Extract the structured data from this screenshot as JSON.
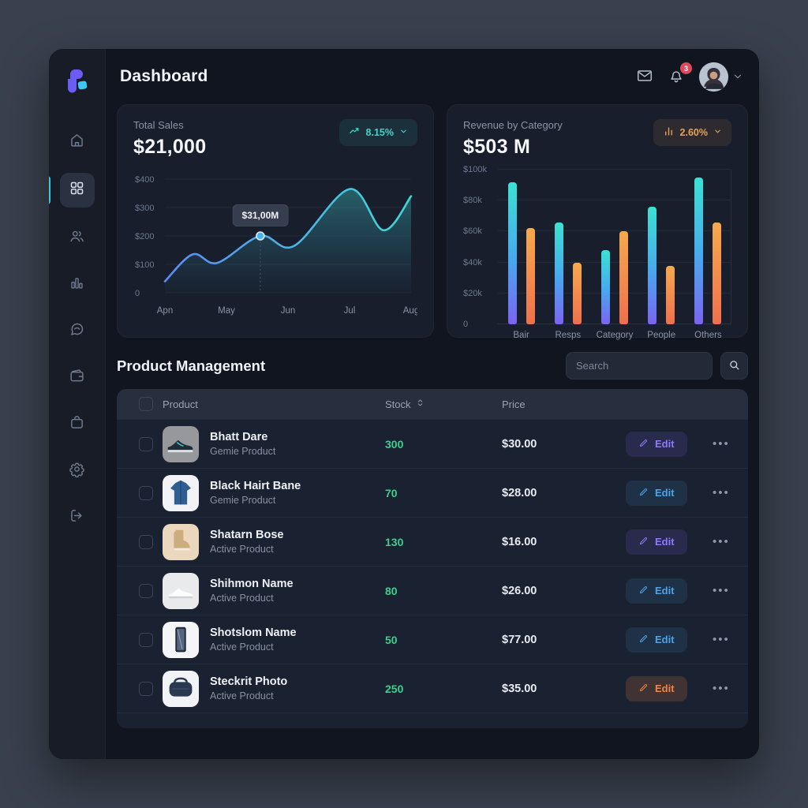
{
  "header": {
    "title": "Dashboard",
    "notification_count": "3"
  },
  "sidebar": {
    "items": [
      {
        "id": "home",
        "icon": "home",
        "active": false
      },
      {
        "id": "dashboard",
        "icon": "grid",
        "active": true
      },
      {
        "id": "users",
        "icon": "users",
        "active": false
      },
      {
        "id": "analytics",
        "icon": "bar-chart",
        "active": false
      },
      {
        "id": "messages",
        "icon": "chat",
        "active": false
      },
      {
        "id": "wallet",
        "icon": "wallet",
        "active": false
      },
      {
        "id": "orders",
        "icon": "bag",
        "active": false
      },
      {
        "id": "settings",
        "icon": "gear",
        "active": false
      },
      {
        "id": "logout",
        "icon": "logout",
        "active": false
      }
    ]
  },
  "cards": {
    "total_sales": {
      "label": "Total Sales",
      "value": "$21,000",
      "badge_text": "8.15%"
    },
    "revenue": {
      "label": "Revenue by Category",
      "value": "$503 M",
      "badge_text": "2.60%"
    }
  },
  "chart_data": [
    {
      "type": "area",
      "title": "Total Sales trend",
      "x_ticks": [
        "Apn",
        "May",
        "Jun",
        "Jul",
        "Aug"
      ],
      "y_ticks": [
        "$400",
        "$300",
        "$200",
        "$100",
        "0"
      ],
      "ylim": [
        0,
        400
      ],
      "points": [
        {
          "x": 0.0,
          "y": 40
        },
        {
          "x": 0.45,
          "y": 135
        },
        {
          "x": 0.85,
          "y": 105
        },
        {
          "x": 1.55,
          "y": 200
        },
        {
          "x": 2.1,
          "y": 165
        },
        {
          "x": 3.0,
          "y": 365
        },
        {
          "x": 3.55,
          "y": 220
        },
        {
          "x": 4.0,
          "y": 340
        }
      ],
      "marker": {
        "x": 1.55,
        "y": 200,
        "label": "$31,00M"
      },
      "line_gradient": [
        "#5b8bf5",
        "#3fd8d4"
      ],
      "grid": true,
      "legend": "none"
    },
    {
      "type": "bar",
      "title": "Revenue by Category",
      "categories": [
        "Bair",
        "Resps",
        "Category",
        "People",
        "Others"
      ],
      "series": [
        {
          "name": "primary",
          "values": [
            92,
            66,
            48,
            76,
            95
          ]
        },
        {
          "name": "secondary",
          "values": [
            62,
            40,
            60,
            38,
            66
          ]
        }
      ],
      "y_ticks": [
        "$100k",
        "$80k",
        "$60k",
        "$40k",
        "$20k",
        "0"
      ],
      "ylim": [
        0,
        100
      ],
      "grid": true,
      "legend": "none"
    }
  ],
  "products": {
    "heading": "Product Management",
    "search_placeholder": "Search",
    "columns": [
      {
        "label": "Product"
      },
      {
        "label": "Stock",
        "sortable": true
      },
      {
        "label": "Price"
      }
    ],
    "rows": [
      {
        "name": "Bhatt Dare",
        "subtitle": "Gemie Product",
        "stock": "300",
        "price": "$30.00",
        "edit_label": "Edit",
        "edit_color": "purple",
        "thumb": "sneaker-dark"
      },
      {
        "name": "Black Hairt Bane",
        "subtitle": "Gemie Product",
        "stock": "70",
        "price": "$28.00",
        "edit_label": "Edit",
        "edit_color": "blue",
        "thumb": "jacket"
      },
      {
        "name": "Shatarn Bose",
        "subtitle": "Active Product",
        "stock": "130",
        "price": "$16.00",
        "edit_label": "Edit",
        "edit_color": "purple",
        "thumb": "boot"
      },
      {
        "name": "Shihmon Name",
        "subtitle": "Active Product",
        "stock": "80",
        "price": "$26.00",
        "edit_label": "Edit",
        "edit_color": "blue",
        "thumb": "sneaker-white"
      },
      {
        "name": "Shotslom Name",
        "subtitle": "Active Product",
        "stock": "50",
        "price": "$77.00",
        "edit_label": "Edit",
        "edit_color": "blue",
        "thumb": "phone"
      },
      {
        "name": "Steckrit Photo",
        "subtitle": "Active Product",
        "stock": "250",
        "price": "$35.00",
        "edit_label": "Edit",
        "edit_color": "orange",
        "thumb": "pouch"
      }
    ]
  },
  "colors": {
    "window_bg": "#10151f",
    "sidebar_bg": "#171c27",
    "card_bg": "#181e2b",
    "accent_teal": "#3fd6c9",
    "accent_cyan": "#3bc8d8",
    "accent_orange": "#e9a254",
    "accent_green": "#3ecf8e",
    "accent_purple": "#8f7bf7",
    "accent_blue": "#4da3e8",
    "accent_red": "#e0485c",
    "logo_purple": "#6b5cf6",
    "logo_cyan": "#3cc8f0"
  }
}
